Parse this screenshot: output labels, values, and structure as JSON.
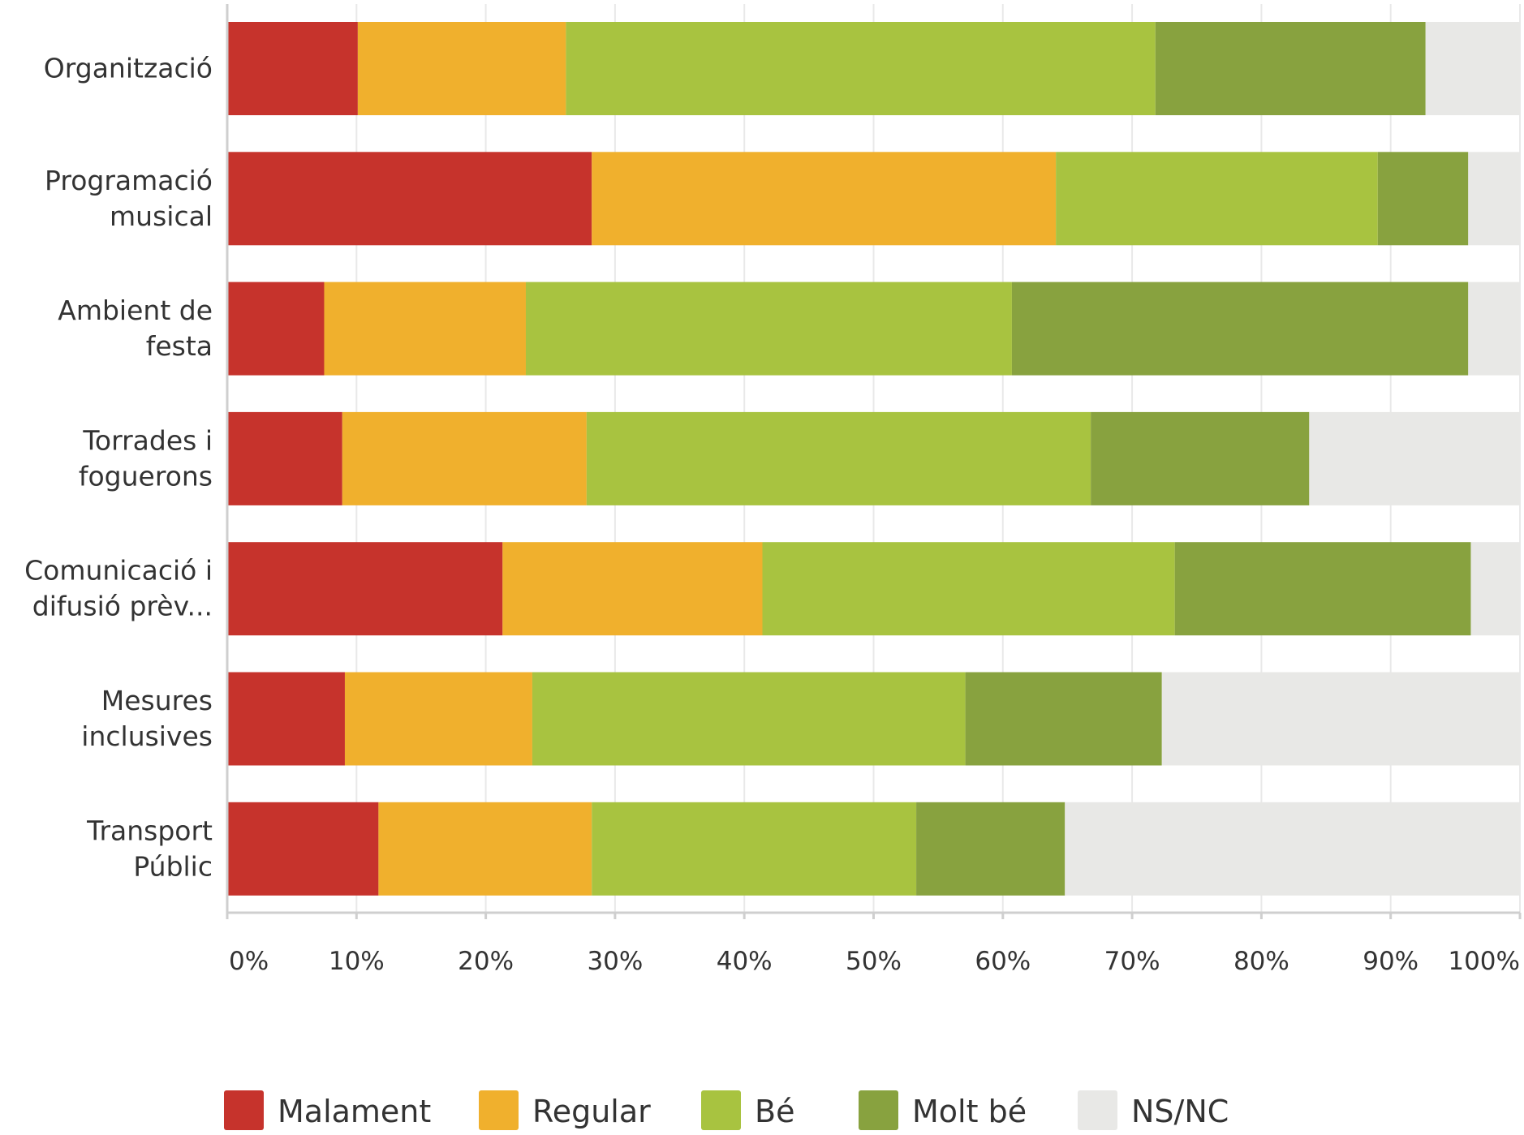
{
  "chart_data": {
    "type": "bar",
    "orientation": "horizontal",
    "stacked": true,
    "categories": [
      [
        "Organització"
      ],
      [
        "Programació",
        "musical"
      ],
      [
        "Ambient de",
        "festa"
      ],
      [
        "Torrades i",
        "foguerons"
      ],
      [
        "Comunicació i",
        "difusió prèv..."
      ],
      [
        "Mesures",
        "inclusives"
      ],
      [
        "Transport",
        "Públic"
      ]
    ],
    "series": [
      {
        "name": "Malament",
        "color": "#c6332c",
        "values": [
          10.1,
          28.2,
          7.5,
          8.9,
          21.3,
          9.1,
          11.7
        ]
      },
      {
        "name": "Regular",
        "color": "#f0b02d",
        "values": [
          16.1,
          35.9,
          15.6,
          18.9,
          20.1,
          14.5,
          16.5
        ]
      },
      {
        "name": "Bé",
        "color": "#a8c340",
        "values": [
          45.6,
          24.9,
          37.6,
          39.0,
          31.9,
          33.5,
          25.1
        ]
      },
      {
        "name": "Molt bé",
        "color": "#88a23f",
        "values": [
          20.9,
          7.0,
          35.3,
          16.9,
          22.9,
          15.2,
          11.5
        ]
      },
      {
        "name": "NS/NC",
        "color": "#e8e8e6",
        "values": [
          7.3,
          4.0,
          4.0,
          16.3,
          3.8,
          27.7,
          35.2
        ]
      }
    ],
    "x_ticks": [
      "0%",
      "10%",
      "20%",
      "30%",
      "40%",
      "50%",
      "60%",
      "70%",
      "80%",
      "90%",
      "100%"
    ],
    "xlim": [
      0,
      100
    ],
    "grid": true,
    "legend_position": "bottom"
  }
}
